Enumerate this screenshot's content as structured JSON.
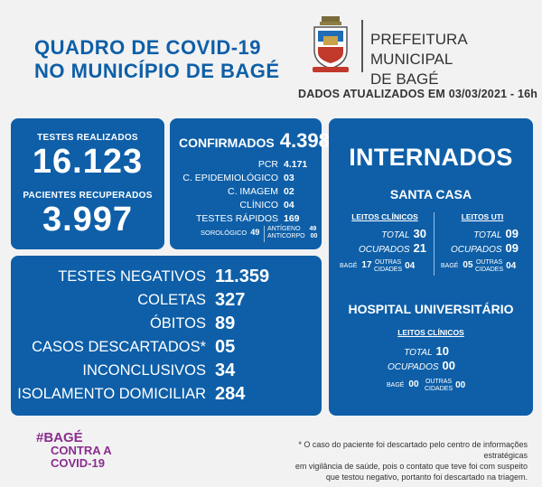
{
  "header": {
    "title_line1": "QUADRO DE COVID-19",
    "title_line2": "NO MUNICÍPIO DE BAGÉ",
    "prefeitura_line1": "PREFEITURA MUNICIPAL",
    "prefeitura_line2": "DE BAGÉ",
    "updated": "DADOS ATUALIZADOS EM 03/03/2021 - 16h"
  },
  "tests": {
    "label": "TESTES REALIZADOS",
    "value": "16.123",
    "recovered_label": "PACIENTES RECUPERADOS",
    "recovered_value": "3.997"
  },
  "confirmed": {
    "label": "CONFIRMADOS",
    "value": "4.398",
    "pcr_label": "PCR",
    "pcr": "4.171",
    "epi_label": "C. EPIDEMIOLÓGICO",
    "epi": "03",
    "img_label": "C. IMAGEM",
    "img": "02",
    "clin_label": "CLÍNICO",
    "clin": "04",
    "rapid_label": "TESTES RÁPIDOS",
    "rapid": "169",
    "sorologico_label": "SOROLÓGICO",
    "sorologico": "49",
    "antigeno_label": "ANTÍGENO",
    "antigeno": "49",
    "anticorpo_label": "ANTICORPO",
    "anticorpo": "00"
  },
  "stats": {
    "negativos_label": "TESTES NEGATIVOS",
    "negativos": "11.359",
    "coletas_label": "COLETAS",
    "coletas": "327",
    "obitos_label": "ÓBITOS",
    "obitos": "89",
    "descartados_label": "CASOS DESCARTADOS*",
    "descartados": "05",
    "inconclusivos_label": "INCONCLUSIVOS",
    "inconclusivos": "34",
    "isolamento_label": "ISOLAMENTO DOMICILIAR",
    "isolamento": "284"
  },
  "internados": {
    "title": "INTERNADOS",
    "santa_casa": {
      "title": "SANTA CASA",
      "clinicos_label": "LEITOS CLÍNICOS",
      "uti_label": "LEITOS UTI",
      "total_label": "TOTAL",
      "ocupados_label": "OCUPADOS",
      "bage_label": "BAGÉ",
      "outras_label_1": "OUTRAS",
      "outras_label_2": "CIDADES",
      "clin_total": "30",
      "clin_ocupados": "21",
      "clin_bage": "17",
      "clin_outras": "04",
      "uti_total": "09",
      "uti_ocupados": "09",
      "uti_bage": "05",
      "uti_outras": "04"
    },
    "hu": {
      "title": "HOSPITAL UNIVERSITÁRIO",
      "clinicos_label": "LEITOS CLÍNICOS",
      "total_label": "TOTAL",
      "ocupados_label": "OCUPADOS",
      "bage_label": "BAGÉ",
      "outras_label_1": "OUTRAS",
      "outras_label_2": "CIDADES",
      "total": "10",
      "ocupados": "00",
      "bage": "00",
      "outras": "00"
    }
  },
  "campaign": {
    "line1": "#BAGÉ",
    "line2": "CONTRA A",
    "line3": "COVID-19"
  },
  "footnote": {
    "line1": "* O caso do paciente foi descartado pelo centro de informações estratégicas",
    "line2": "em vigilância de saúde, pois o contato que teve foi com suspeito",
    "line3": "que testou negativo, portanto foi descartado na triagem."
  },
  "colors": {
    "primary": "#0e5fa8",
    "campaign": "#8a2d8f",
    "background": "#f2f2f2"
  }
}
